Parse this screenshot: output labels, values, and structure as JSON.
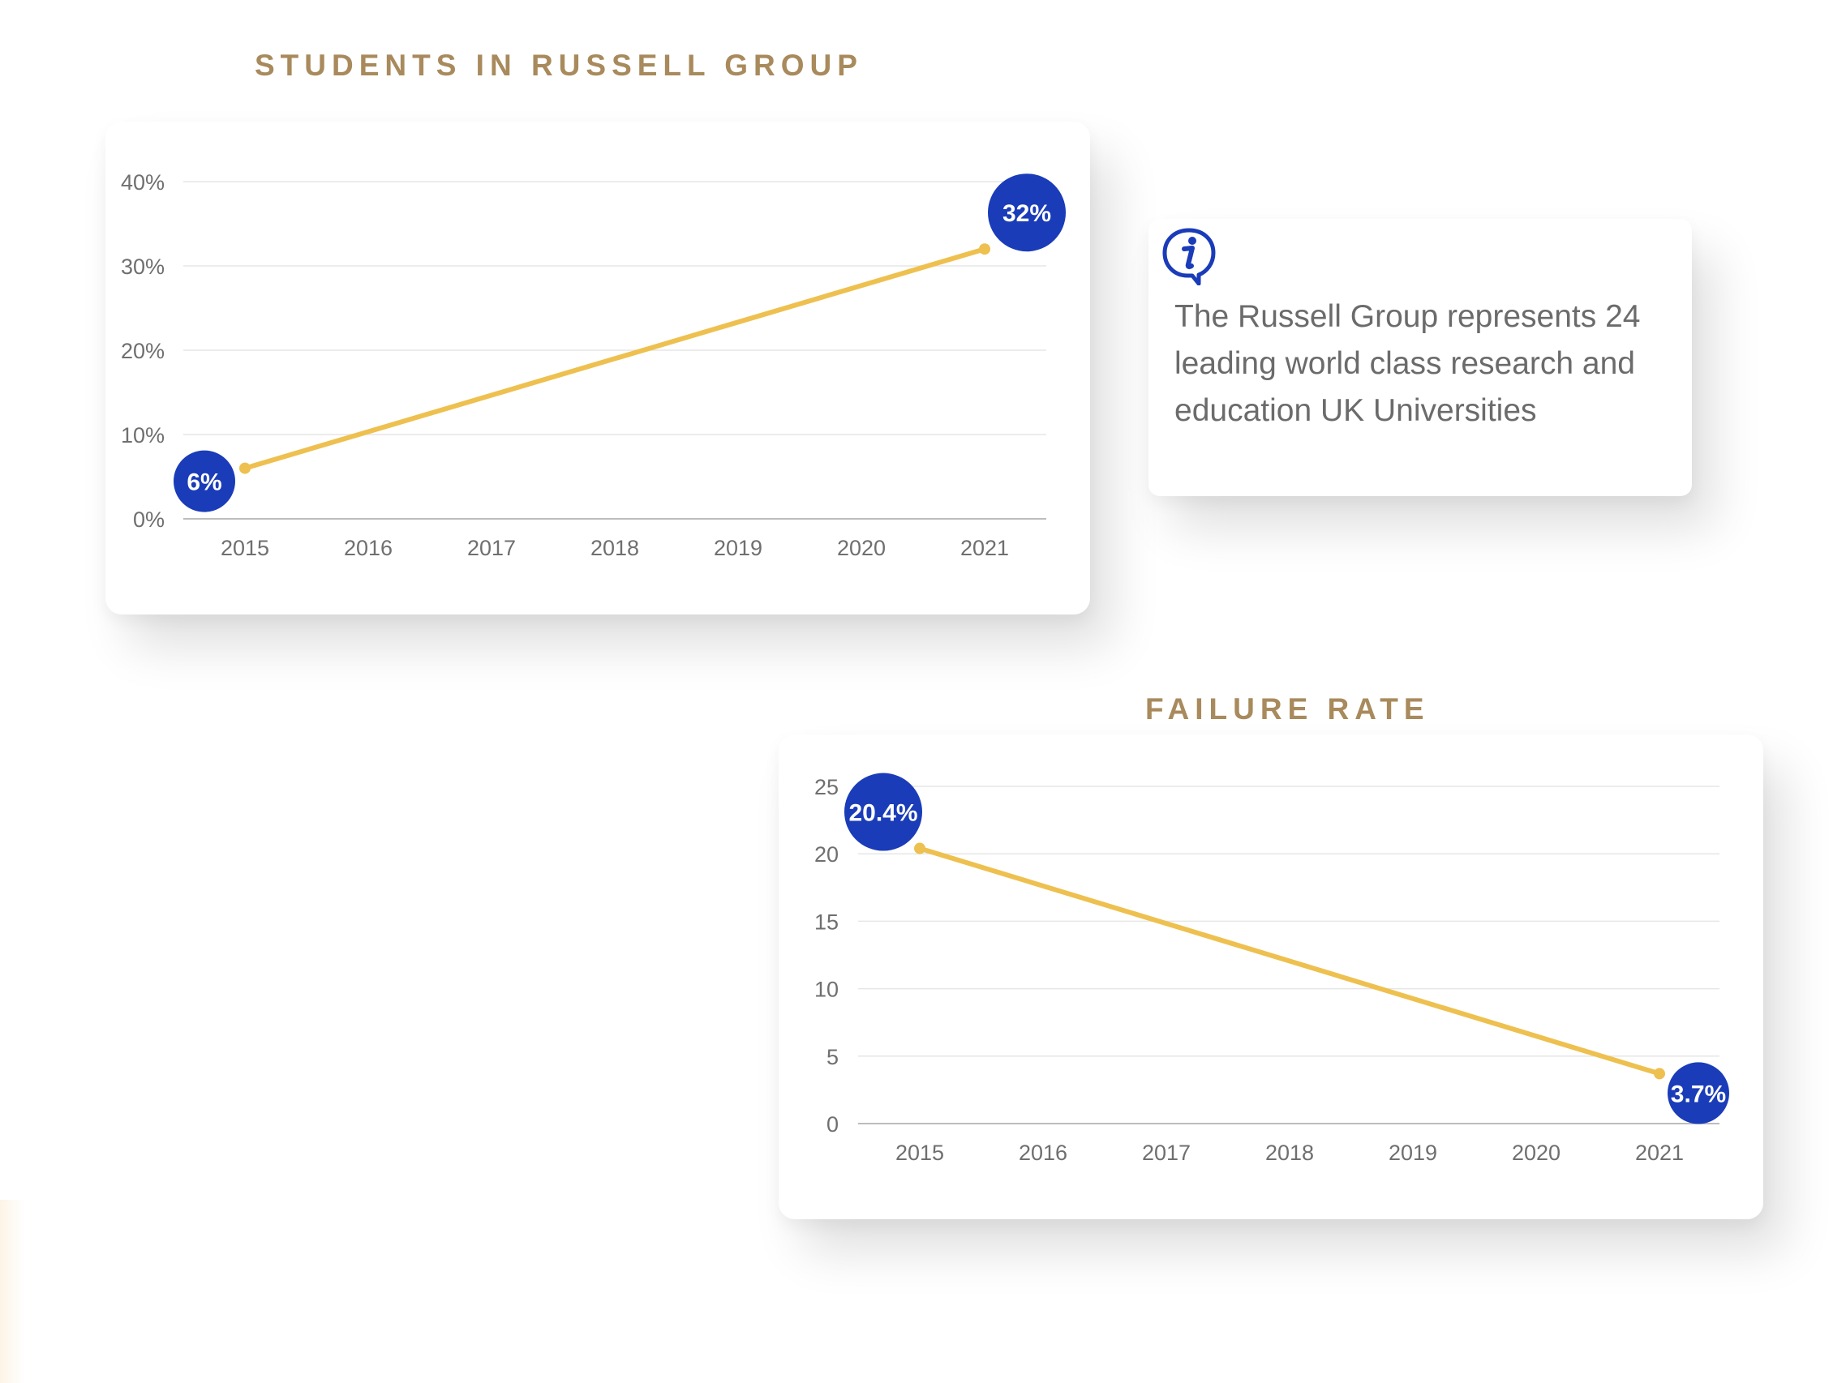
{
  "colors": {
    "heading": "#a88a5c",
    "line": "#eec04f",
    "badge": "#1a3cb8",
    "grid": "#e6e6e6",
    "tick_text": "#6f6f6f",
    "info_text": "#6b6b6b"
  },
  "info": {
    "icon": "info-speech-bubble-icon",
    "text": "The Russell Group represents 24 leading world class research and education UK Universities"
  },
  "chart_data": [
    {
      "type": "line",
      "title": "STUDENTS IN RUSSELL GROUP",
      "x": [
        "2015",
        "2016",
        "2017",
        "2018",
        "2019",
        "2020",
        "2021"
      ],
      "points": [
        {
          "x": "2015",
          "y": 6,
          "label": "6%"
        },
        {
          "x": "2021",
          "y": 32,
          "label": "32%"
        }
      ],
      "yticks": [
        "0%",
        "10%",
        "20%",
        "30%",
        "40%"
      ],
      "ylim": [
        0,
        40
      ],
      "grid": true,
      "legend": "none"
    },
    {
      "type": "line",
      "title": "FAILURE RATE",
      "x": [
        "2015",
        "2016",
        "2017",
        "2018",
        "2019",
        "2020",
        "2021"
      ],
      "points": [
        {
          "x": "2015",
          "y": 20.4,
          "label": "20.4%"
        },
        {
          "x": "2021",
          "y": 3.7,
          "label": "3.7%"
        }
      ],
      "yticks": [
        "0",
        "5",
        "10",
        "15",
        "20",
        "25"
      ],
      "ylim": [
        0,
        25
      ],
      "grid": true,
      "legend": "none"
    }
  ]
}
